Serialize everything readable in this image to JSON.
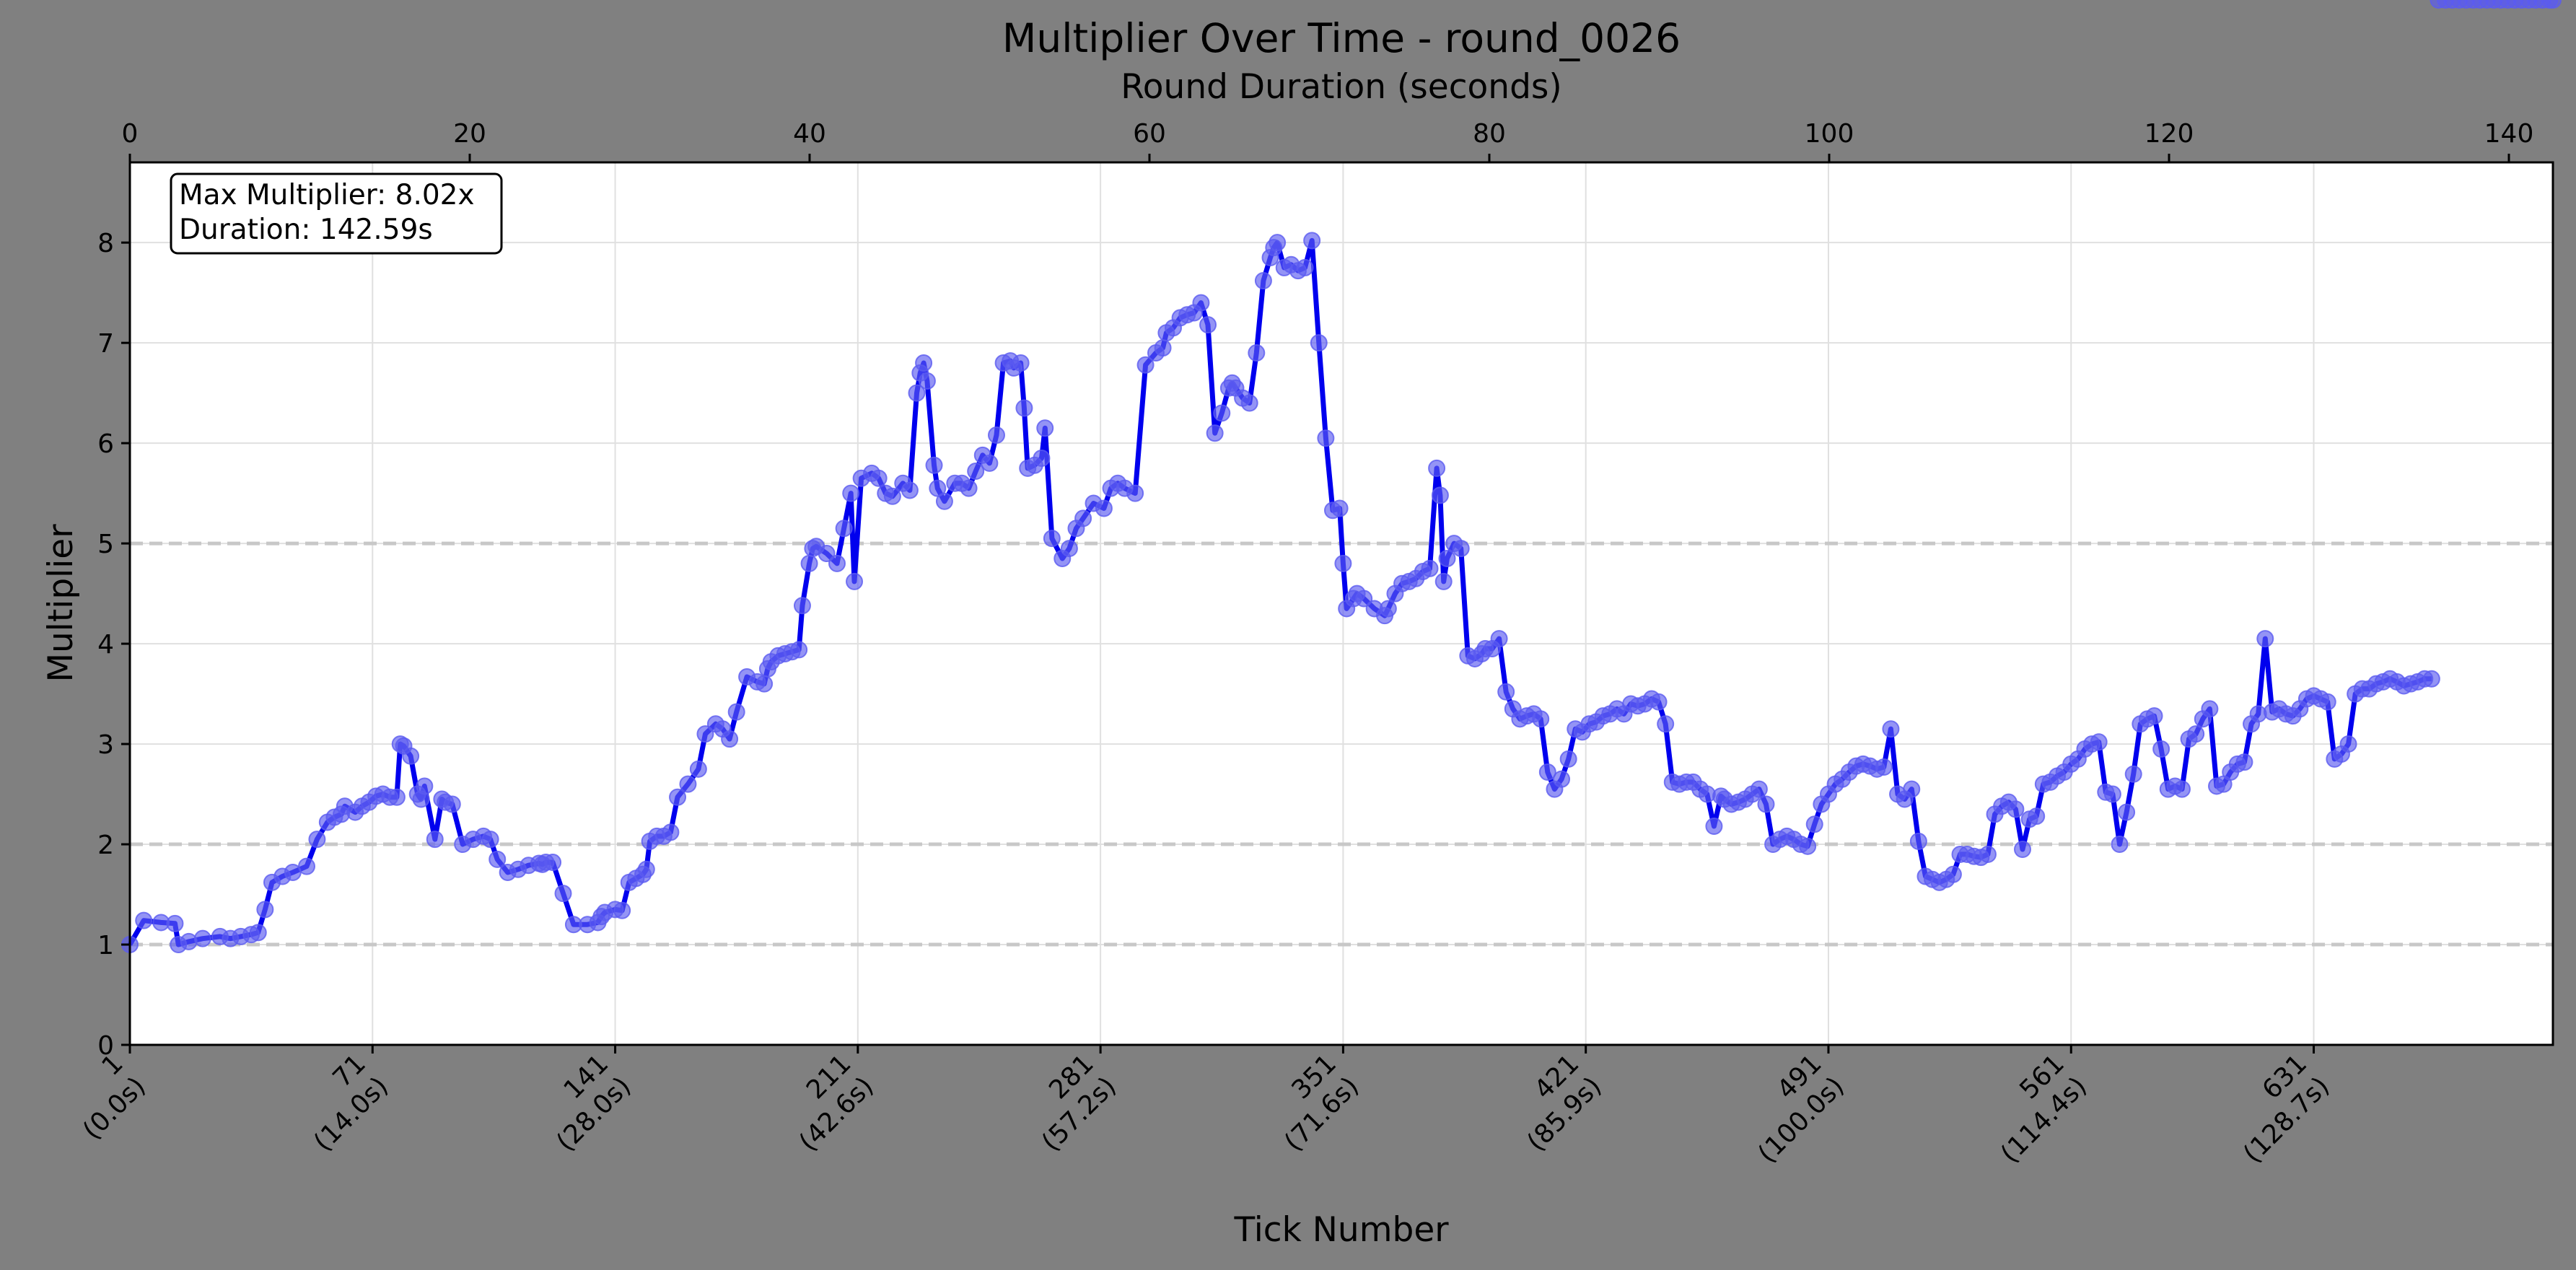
{
  "chart_data": {
    "type": "line",
    "title": "Multiplier Over Time - round_0026",
    "xlabel": "Tick Number",
    "ylabel": "Multiplier",
    "top_xlabel": "Round Duration (seconds)",
    "xlim": [
      1,
      700
    ],
    "ylim": [
      0,
      8.8
    ],
    "top_xlim": [
      0,
      142.59
    ],
    "yticks": [
      0,
      1,
      2,
      3,
      4,
      5,
      6,
      7,
      8
    ],
    "top_xticks": [
      0,
      20,
      40,
      60,
      80,
      100,
      120,
      140
    ],
    "bottom_xticks": [
      {
        "tick": 1,
        "line1": "1",
        "line2": "(0.0s)"
      },
      {
        "tick": 71,
        "line1": "71",
        "line2": "(14.0s)"
      },
      {
        "tick": 141,
        "line1": "141",
        "line2": "(28.0s)"
      },
      {
        "tick": 211,
        "line1": "211",
        "line2": "(42.6s)"
      },
      {
        "tick": 281,
        "line1": "281",
        "line2": "(57.2s)"
      },
      {
        "tick": 351,
        "line1": "351",
        "line2": "(71.6s)"
      },
      {
        "tick": 421,
        "line1": "421",
        "line2": "(85.9s)"
      },
      {
        "tick": 491,
        "line1": "491",
        "line2": "(100.0s)"
      },
      {
        "tick": 561,
        "line1": "561",
        "line2": "(114.4s)"
      },
      {
        "tick": 631,
        "line1": "631",
        "line2": "(128.7s)"
      }
    ],
    "reference_lines": [
      1,
      2,
      5
    ],
    "grid": true,
    "annotation": {
      "line1": "Max Multiplier: 8.02x",
      "line2": "Duration: 142.59s"
    },
    "colors": {
      "line": "#0000ee",
      "marker": "#5b5bf0",
      "reference": "#c8c8c8",
      "grid": "#e0e0e0",
      "background": "#808080",
      "plot": "#ffffff"
    },
    "series": [
      {
        "ticks": [
          1,
          5,
          10,
          14,
          15,
          18,
          22,
          27,
          30,
          33,
          36,
          38,
          40,
          42,
          45,
          48,
          52,
          55,
          58,
          60,
          62,
          63,
          66,
          68,
          70,
          72,
          74,
          76,
          78,
          79,
          80,
          82,
          84,
          85,
          86,
          89,
          91,
          92,
          94,
          97,
          100,
          103,
          105,
          107,
          110,
          113,
          116,
          119,
          120,
          121,
          123,
          126,
          129,
          133,
          136,
          137,
          138,
          141,
          143,
          145,
          147,
          149,
          150,
          151,
          153,
          155,
          157,
          159,
          162,
          165,
          167,
          170,
          172,
          174,
          176,
          179,
          182,
          184,
          185,
          186,
          188,
          190,
          192,
          194,
          195,
          197,
          198,
          199,
          202,
          205,
          207,
          209,
          210,
          212,
          215,
          217,
          219,
          221,
          224,
          226,
          228,
          229,
          230,
          231,
          233,
          234,
          236,
          239,
          241,
          243,
          245,
          247,
          249,
          251,
          253,
          255,
          256,
          258,
          259,
          260,
          262,
          264,
          265,
          267,
          270,
          272,
          274,
          276,
          279,
          282,
          284,
          286,
          288,
          291,
          294,
          297,
          299,
          300,
          302,
          304,
          306,
          308,
          310,
          312,
          314,
          316,
          318,
          319,
          320,
          322,
          324,
          326,
          328,
          330,
          331,
          332,
          334,
          336,
          338,
          340,
          342,
          344,
          346,
          348,
          350,
          351,
          352,
          354,
          355,
          357,
          360,
          363,
          364,
          366,
          368,
          370,
          372,
          374,
          376,
          378,
          379,
          380,
          381,
          383,
          385,
          387,
          389,
          391,
          392,
          394,
          396,
          398,
          400,
          402,
          404,
          406,
          408,
          410,
          412,
          414,
          416,
          418,
          420,
          422,
          424,
          426,
          428,
          430,
          432,
          434,
          436,
          438,
          440,
          442,
          444,
          446,
          448,
          450,
          452,
          454,
          456,
          458,
          460,
          461,
          463,
          465,
          467,
          469,
          471,
          473,
          475,
          477,
          479,
          481,
          483,
          485,
          487,
          489,
          491,
          493,
          495,
          497,
          499,
          501,
          503,
          505,
          507,
          509,
          511,
          513,
          515,
          517,
          519,
          521,
          523,
          525,
          527,
          529,
          531,
          533,
          535,
          537,
          539,
          541,
          543,
          545,
          547,
          549,
          551,
          553,
          555,
          557,
          559,
          561,
          563,
          565,
          567,
          569,
          571,
          573,
          575,
          577,
          579,
          581,
          583,
          585,
          587,
          589,
          591,
          593,
          595,
          597,
          599,
          601,
          603,
          605,
          607,
          609,
          611,
          613,
          615,
          617,
          619,
          621,
          623,
          625,
          627,
          629,
          631,
          633,
          635,
          637,
          639,
          641,
          643,
          645,
          647,
          649,
          651,
          653,
          655,
          657,
          659,
          661,
          663,
          665,
          667,
          669,
          671,
          673,
          675,
          677,
          679,
          681,
          683,
          685,
          687,
          689,
          691,
          693,
          695,
          697,
          699,
          700
        ],
        "values": [
          1.0,
          1.24,
          1.22,
          1.21,
          1.0,
          1.03,
          1.06,
          1.08,
          1.06,
          1.08,
          1.1,
          1.12,
          1.35,
          1.62,
          1.68,
          1.72,
          1.78,
          2.05,
          2.22,
          2.27,
          2.3,
          2.38,
          2.32,
          2.38,
          2.42,
          2.48,
          2.5,
          2.47,
          2.47,
          3.0,
          2.98,
          2.88,
          2.5,
          2.45,
          2.58,
          2.05,
          2.45,
          2.42,
          2.4,
          2.0,
          2.05,
          2.08,
          2.05,
          1.85,
          1.72,
          1.75,
          1.79,
          1.81,
          1.8,
          1.82,
          1.82,
          1.51,
          1.2,
          1.2,
          1.22,
          1.28,
          1.32,
          1.35,
          1.34,
          1.62,
          1.66,
          1.7,
          1.75,
          2.03,
          2.08,
          2.08,
          2.12,
          2.47,
          2.6,
          2.75,
          3.1,
          3.2,
          3.15,
          3.05,
          3.32,
          3.67,
          3.62,
          3.6,
          3.75,
          3.82,
          3.88,
          3.9,
          3.92,
          3.94,
          4.38,
          4.8,
          4.95,
          4.97,
          4.9,
          4.8,
          5.15,
          5.5,
          4.62,
          5.65,
          5.7,
          5.65,
          5.5,
          5.47,
          5.6,
          5.53,
          6.5,
          6.7,
          6.8,
          6.62,
          5.78,
          5.55,
          5.42,
          5.6,
          5.6,
          5.55,
          5.72,
          5.88,
          5.8,
          6.08,
          6.8,
          6.82,
          6.75,
          6.8,
          6.35,
          5.75,
          5.78,
          5.85,
          6.15,
          5.05,
          4.85,
          4.95,
          5.15,
          5.25,
          5.4,
          5.35,
          5.55,
          5.6,
          5.55,
          5.5,
          6.78,
          6.9,
          6.95,
          7.1,
          7.15,
          7.25,
          7.28,
          7.3,
          7.4,
          7.18,
          6.1,
          6.3,
          6.55,
          6.6,
          6.55,
          6.45,
          6.4,
          6.9,
          7.62,
          7.85,
          7.95,
          8.0,
          7.75,
          7.78,
          7.72,
          7.75,
          8.02,
          7.0,
          6.05,
          5.33,
          5.35,
          4.8,
          4.35,
          4.45,
          4.5,
          4.45,
          4.35,
          4.28,
          4.35,
          4.5,
          4.6,
          4.62,
          4.65,
          4.72,
          4.75,
          5.75,
          5.48,
          4.62,
          4.85,
          5.0,
          4.95,
          3.88,
          3.85,
          3.9,
          3.95,
          3.95,
          4.05,
          3.52,
          3.35,
          3.25,
          3.28,
          3.3,
          3.25,
          2.72,
          2.55,
          2.65,
          2.85,
          3.15,
          3.12,
          3.2,
          3.22,
          3.28,
          3.3,
          3.35,
          3.3,
          3.4,
          3.38,
          3.4,
          3.45,
          3.42,
          3.2,
          2.62,
          2.6,
          2.62,
          2.62,
          2.55,
          2.5,
          2.18,
          2.48,
          2.45,
          2.4,
          2.42,
          2.45,
          2.5,
          2.55,
          2.4,
          2.0,
          2.05,
          2.08,
          2.05,
          2.0,
          1.98,
          2.2,
          2.4,
          2.5,
          2.6,
          2.65,
          2.72,
          2.78,
          2.8,
          2.78,
          2.75,
          2.77,
          3.15,
          2.5,
          2.45,
          2.55,
          2.03,
          1.68,
          1.65,
          1.62,
          1.65,
          1.7,
          1.9,
          1.9,
          1.88,
          1.87,
          1.9,
          2.3,
          2.38,
          2.42,
          2.35,
          1.95,
          2.25,
          2.28,
          2.6,
          2.62,
          2.68,
          2.72,
          2.8,
          2.85,
          2.95,
          3.0,
          3.02,
          2.52,
          2.5,
          2.0,
          2.32,
          2.7,
          3.2,
          3.25,
          3.28,
          2.95,
          2.55,
          2.58,
          2.55,
          3.05,
          3.1,
          3.25,
          3.35,
          2.58,
          2.6,
          2.72,
          2.8,
          2.82,
          3.2,
          3.3,
          4.05,
          3.32,
          3.35,
          3.3,
          3.28,
          3.35,
          3.45,
          3.48,
          3.45,
          3.42,
          2.85,
          2.9,
          3.0,
          3.5,
          3.55,
          3.55,
          3.6,
          3.62,
          3.65,
          3.62,
          3.58,
          3.6,
          3.62,
          3.65,
          3.65
        ]
      }
    ]
  }
}
